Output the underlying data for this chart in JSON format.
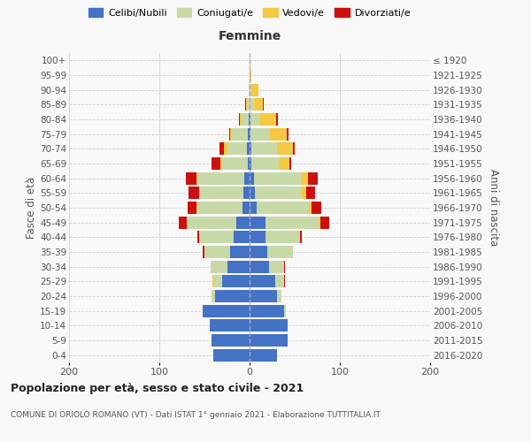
{
  "age_groups": [
    "0-4",
    "5-9",
    "10-14",
    "15-19",
    "20-24",
    "25-29",
    "30-34",
    "35-39",
    "40-44",
    "45-49",
    "50-54",
    "55-59",
    "60-64",
    "65-69",
    "70-74",
    "75-79",
    "80-84",
    "85-89",
    "90-94",
    "95-99",
    "100+"
  ],
  "birth_years": [
    "2016-2020",
    "2011-2015",
    "2006-2010",
    "2001-2005",
    "1996-2000",
    "1991-1995",
    "1986-1990",
    "1981-1985",
    "1976-1980",
    "1971-1975",
    "1966-1970",
    "1961-1965",
    "1956-1960",
    "1951-1955",
    "1946-1950",
    "1941-1945",
    "1936-1940",
    "1931-1935",
    "1926-1930",
    "1921-1925",
    "≤ 1920"
  ],
  "colors": {
    "celibi": "#4472C4",
    "coniugati": "#C8D9A8",
    "vedovi": "#F5C842",
    "divorziati": "#CC1010"
  },
  "males": {
    "celibi": [
      40,
      42,
      44,
      52,
      38,
      30,
      25,
      22,
      18,
      15,
      8,
      7,
      6,
      2,
      3,
      2,
      1,
      0,
      0,
      0,
      0
    ],
    "coniugati": [
      0,
      0,
      0,
      0,
      4,
      10,
      18,
      28,
      38,
      55,
      50,
      48,
      52,
      28,
      22,
      18,
      8,
      3,
      1,
      0,
      0
    ],
    "vedovi": [
      0,
      0,
      0,
      0,
      0,
      1,
      0,
      0,
      0,
      0,
      1,
      1,
      1,
      2,
      3,
      2,
      2,
      1,
      0,
      0,
      0
    ],
    "divorziati": [
      0,
      0,
      0,
      0,
      0,
      0,
      0,
      2,
      2,
      8,
      10,
      12,
      12,
      10,
      5,
      1,
      1,
      1,
      0,
      0,
      0
    ]
  },
  "females": {
    "celibi": [
      30,
      42,
      42,
      38,
      30,
      28,
      22,
      20,
      18,
      18,
      8,
      6,
      5,
      2,
      2,
      1,
      1,
      0,
      0,
      0,
      0
    ],
    "coniugati": [
      0,
      0,
      0,
      2,
      5,
      10,
      16,
      28,
      38,
      58,
      58,
      52,
      52,
      30,
      28,
      22,
      10,
      5,
      2,
      0,
      0
    ],
    "vedovi": [
      0,
      0,
      0,
      0,
      0,
      0,
      0,
      0,
      0,
      2,
      3,
      5,
      8,
      12,
      18,
      18,
      18,
      10,
      8,
      2,
      1
    ],
    "divorziati": [
      0,
      0,
      0,
      0,
      0,
      1,
      1,
      0,
      2,
      10,
      10,
      10,
      10,
      2,
      2,
      2,
      2,
      1,
      0,
      0,
      0
    ]
  },
  "xlim": 200,
  "title": "Popolazione per età, sesso e stato civile - 2021",
  "subtitle": "COMUNE DI ORIOLO ROMANO (VT) - Dati ISTAT 1° gennaio 2021 - Elaborazione TUTTITALIA.IT",
  "ylabel_left": "Fasce di età",
  "ylabel_right": "Anni di nascita",
  "xlabel_right": "Femmine",
  "bg_color": "#f8f8f8",
  "grid_color": "#cccccc"
}
